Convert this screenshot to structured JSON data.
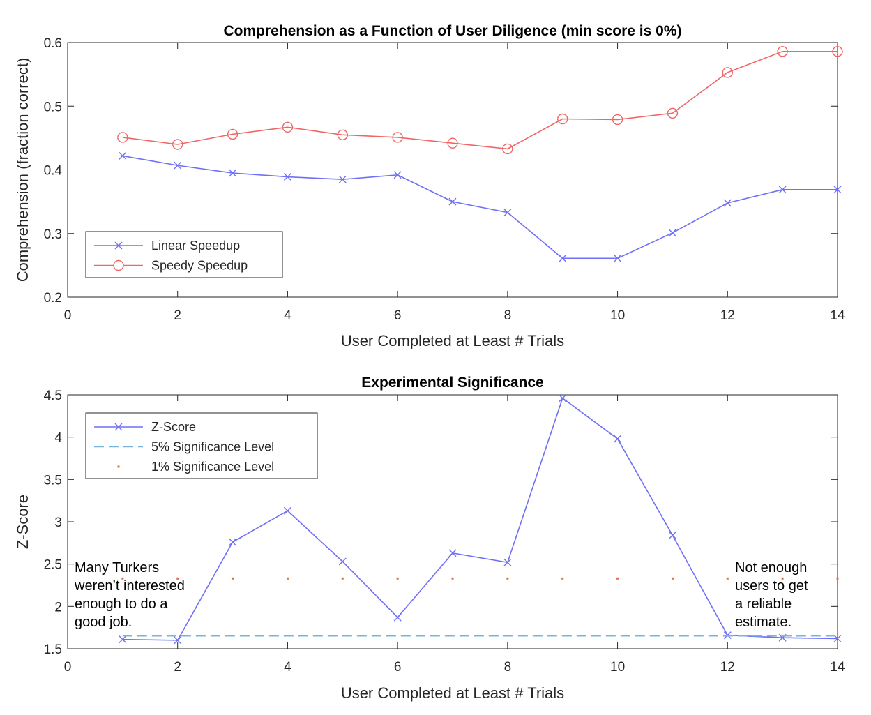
{
  "chart_data": [
    {
      "type": "line",
      "title": "Comprehension as a Function of User Diligence (min score is 0%)",
      "xlabel": "User Completed at Least # Trials",
      "ylabel": "Comprehension (fraction correct)",
      "xlim": [
        0,
        14
      ],
      "ylim": [
        0.2,
        0.6
      ],
      "xticks": [
        0,
        2,
        4,
        6,
        8,
        10,
        12,
        14
      ],
      "yticks": [
        0.2,
        0.3,
        0.4,
        0.5,
        0.6
      ],
      "xtick_labels": [
        "0",
        "2",
        "4",
        "6",
        "8",
        "10",
        "12",
        "14"
      ],
      "ytick_labels": [
        "0.2",
        "0.3",
        "0.4",
        "0.5",
        "0.6"
      ],
      "legend_position": "bottom-left",
      "series": [
        {
          "name": "Linear Speedup",
          "color": "#6f6ff7",
          "marker": "x",
          "x": [
            1,
            2,
            3,
            4,
            5,
            6,
            7,
            8,
            9,
            10,
            11,
            12,
            13,
            14
          ],
          "y": [
            0.422,
            0.407,
            0.395,
            0.389,
            0.385,
            0.392,
            0.35,
            0.333,
            0.261,
            0.261,
            0.301,
            0.348,
            0.369,
            0.369
          ]
        },
        {
          "name": "Speedy Speedup",
          "color": "#f06666",
          "marker": "o",
          "x": [
            1,
            2,
            3,
            4,
            5,
            6,
            7,
            8,
            9,
            10,
            11,
            12,
            13,
            14
          ],
          "y": [
            0.451,
            0.44,
            0.456,
            0.467,
            0.455,
            0.451,
            0.442,
            0.433,
            0.48,
            0.479,
            0.489,
            0.553,
            0.586,
            0.586
          ]
        }
      ]
    },
    {
      "type": "line",
      "title": "Experimental Significance",
      "xlabel": "User Completed at Least # Trials",
      "ylabel": "Z-Score",
      "xlim": [
        0,
        14
      ],
      "ylim": [
        1.5,
        4.5
      ],
      "xticks": [
        0,
        2,
        4,
        6,
        8,
        10,
        12,
        14
      ],
      "yticks": [
        1.5,
        2,
        2.5,
        3,
        3.5,
        4,
        4.5
      ],
      "xtick_labels": [
        "0",
        "2",
        "4",
        "6",
        "8",
        "10",
        "12",
        "14"
      ],
      "ytick_labels": [
        "1.5",
        "2",
        "2.5",
        "3",
        "3.5",
        "4",
        "4.5"
      ],
      "legend_position": "top-left",
      "series": [
        {
          "name": "Z-Score",
          "color": "#6f6ff7",
          "marker": "x",
          "x": [
            1,
            2,
            3,
            4,
            5,
            6,
            7,
            8,
            9,
            10,
            11,
            12,
            13,
            14
          ],
          "y": [
            1.61,
            1.6,
            2.76,
            3.13,
            2.53,
            1.87,
            2.63,
            2.52,
            4.46,
            3.98,
            2.84,
            1.66,
            1.63,
            1.62
          ]
        },
        {
          "name": "5% Significance Level",
          "color": "#78b4de",
          "style": "dashed",
          "x": [
            1,
            14
          ],
          "y": [
            1.65,
            1.65
          ]
        },
        {
          "name": "1% Significance Level",
          "color": "#e8674a",
          "style": "dotted",
          "x": [
            1,
            2,
            3,
            4,
            5,
            6,
            7,
            8,
            9,
            10,
            11,
            12,
            13,
            14
          ],
          "y": [
            2.33,
            2.33,
            2.33,
            2.33,
            2.33,
            2.33,
            2.33,
            2.33,
            2.33,
            2.33,
            2.33,
            2.33,
            2.33,
            2.33
          ]
        }
      ],
      "annotations": [
        {
          "lines": [
            "Many Turkers",
            "weren’t interested",
            "enough to do a",
            "good job."
          ]
        },
        {
          "lines": [
            "Not enough",
            "users to get",
            "a reliable",
            "estimate."
          ]
        }
      ]
    }
  ]
}
